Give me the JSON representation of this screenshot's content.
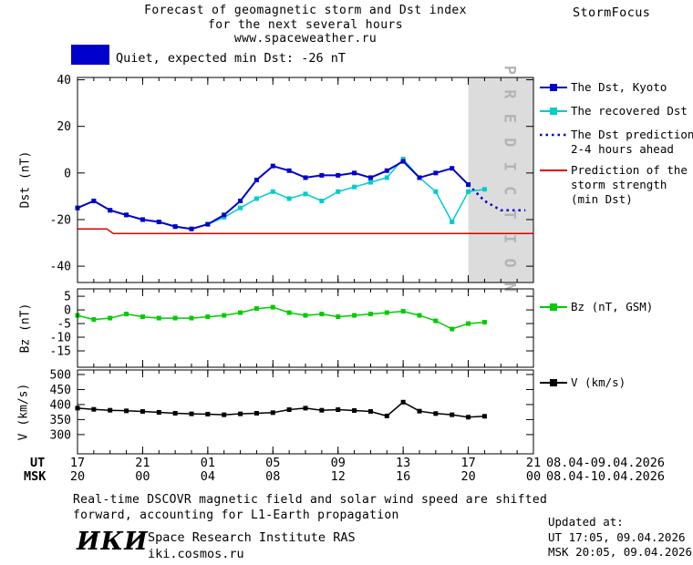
{
  "header": {
    "title_line1": "Forecast of geomagnetic storm and Dst index",
    "title_line2": "for the next several hours",
    "title_line3": "www.spaceweather.ru",
    "brand": "StormFocus"
  },
  "status_banner": {
    "text": "Quiet, expected min Dst: -26 nT",
    "swatch_color": "#0000cc"
  },
  "legend": {
    "dst_kyoto": "The Dst, Kyoto",
    "recovered_dst": "The recovered Dst",
    "dst_prediction_line1": "The Dst prediction",
    "dst_prediction_line2": "2-4 hours ahead",
    "storm_strength_line1": "Prediction of the",
    "storm_strength_line2": "storm strength",
    "storm_strength_line3": "(min Dst)",
    "bz": "Bz (nT, GSM)",
    "v": "V (km/s)"
  },
  "xaxis": {
    "ut_label": "UT",
    "msk_label": "MSK",
    "ut_ticks": [
      "17",
      "21",
      "01",
      "05",
      "09",
      "13",
      "17",
      "21"
    ],
    "msk_ticks": [
      "20",
      "00",
      "04",
      "08",
      "12",
      "16",
      "20",
      "00"
    ],
    "ut_date_range": "08.04-09.04.2026",
    "msk_date_range": "08.04-10.04.2026"
  },
  "footnote": {
    "line1": "Real-time DSCOVR magnetic field and solar wind speed are shifted",
    "line2": "forward, accounting for L1-Earth propagation"
  },
  "footer": {
    "logo": "ИКИ",
    "institute": "Space Research Institute RAS",
    "website": "iki.cosmos.ru",
    "updated_label": "Updated at:",
    "updated_ut": "UT  17:05, 09.04.2026",
    "updated_msk": "MSK 20:05, 09.04.2026"
  },
  "colors": {
    "dst_kyoto": "#0000cc",
    "recovered_dst": "#00cccc",
    "dst_prediction": "#0000cc",
    "storm_strength": "#dd0000",
    "bz": "#00cc00",
    "v": "#000000",
    "prediction_band": "#dcdcdc",
    "prediction_band_label": "#b4b4b4"
  },
  "chart_data": [
    {
      "type": "line",
      "panel": "dst",
      "ylabel": "Dst (nT)",
      "x_is": "hours since 17:00 UT 08.04.2026",
      "xlim": [
        0,
        28
      ],
      "ylim": [
        -47,
        41
      ],
      "yticks": [
        40,
        20,
        0,
        -20,
        -40
      ],
      "xticks_hours": [
        0,
        4,
        8,
        12,
        16,
        20,
        24,
        28
      ],
      "grid": false,
      "prediction_band": {
        "x0": 24,
        "x1": 28,
        "label": "P R E D I C T I O N"
      },
      "series": [
        {
          "name": "The Dst, Kyoto",
          "color": "#0000cc",
          "marker": "square",
          "width": 2,
          "x": [
            0,
            1,
            2,
            3,
            4,
            5,
            6,
            7,
            8,
            9,
            10,
            11,
            12,
            13,
            14,
            15,
            16,
            17,
            18,
            19,
            20,
            21,
            22,
            23,
            24
          ],
          "y": [
            -15,
            -12,
            -16,
            -18,
            -20,
            -21,
            -23,
            -24,
            -22,
            -18,
            -12,
            -3,
            3,
            1,
            -2,
            -1,
            -1,
            0,
            -2,
            1,
            5,
            -2,
            0,
            2,
            -5
          ]
        },
        {
          "name": "The recovered Dst",
          "color": "#00cccc",
          "marker": "square",
          "width": 1.5,
          "x": [
            0,
            1,
            2,
            3,
            4,
            5,
            6,
            7,
            8,
            9,
            10,
            11,
            12,
            13,
            14,
            15,
            16,
            17,
            18,
            19,
            20,
            21,
            22,
            23,
            24,
            25
          ],
          "y": [
            -15,
            -12,
            -16,
            -18,
            -20,
            -21,
            -23,
            -24,
            -22,
            -19,
            -15,
            -11,
            -8,
            -11,
            -9,
            -12,
            -8,
            -6,
            -4,
            -2,
            6,
            -2,
            -8,
            -21,
            -8,
            -7
          ]
        },
        {
          "name": "The Dst prediction 2-4 hours ahead",
          "color": "#0000cc",
          "style": "dotted",
          "width": 2.5,
          "x": [
            24,
            25,
            26,
            27.5
          ],
          "y": [
            -5,
            -12,
            -16,
            -16
          ]
        },
        {
          "name": "Prediction of the storm strength (min Dst)",
          "color": "#dd0000",
          "width": 1.5,
          "x": [
            0,
            1.8,
            2.2,
            28
          ],
          "y": [
            -24,
            -24,
            -26,
            -26
          ]
        }
      ]
    },
    {
      "type": "line",
      "panel": "bz",
      "ylabel": "Bz (nT)",
      "xlim": [
        0,
        28
      ],
      "ylim": [
        -21,
        7.7
      ],
      "yticks": [
        5,
        0,
        -5,
        -10,
        -15
      ],
      "xticks_hours": [
        0,
        4,
        8,
        12,
        16,
        20,
        24,
        28
      ],
      "grid": false,
      "series": [
        {
          "name": "Bz (nT, GSM)",
          "color": "#00cc00",
          "marker": "square",
          "width": 1.5,
          "x": [
            0,
            1,
            2,
            3,
            4,
            5,
            6,
            7,
            8,
            9,
            10,
            11,
            12,
            13,
            14,
            15,
            16,
            17,
            18,
            19,
            20,
            21,
            22,
            23,
            24,
            25
          ],
          "y": [
            -2,
            -3.5,
            -3,
            -1.5,
            -2.5,
            -3,
            -3,
            -3,
            -2.5,
            -2,
            -1,
            0.5,
            1,
            -1,
            -2,
            -1.5,
            -2.5,
            -2,
            -1.5,
            -1,
            -0.5,
            -2,
            -4,
            -7,
            -5,
            -4.5
          ]
        }
      ]
    },
    {
      "type": "line",
      "panel": "v",
      "ylabel": "V (km/s)",
      "xlim": [
        0,
        28
      ],
      "ylim": [
        236,
        515
      ],
      "yticks": [
        500,
        450,
        400,
        350,
        300
      ],
      "xticks_hours": [
        0,
        4,
        8,
        12,
        16,
        20,
        24,
        28
      ],
      "grid": false,
      "series": [
        {
          "name": "V (km/s)",
          "color": "#000000",
          "marker": "square",
          "width": 1.5,
          "x": [
            0,
            1,
            2,
            3,
            4,
            5,
            6,
            7,
            8,
            9,
            10,
            11,
            12,
            13,
            14,
            15,
            16,
            17,
            18,
            19,
            20,
            21,
            22,
            23,
            24,
            25
          ],
          "y": [
            388,
            384,
            381,
            379,
            377,
            374,
            371,
            369,
            368,
            366,
            369,
            371,
            373,
            383,
            388,
            381,
            383,
            380,
            377,
            362,
            408,
            378,
            370,
            366,
            358,
            361
          ]
        }
      ]
    }
  ]
}
